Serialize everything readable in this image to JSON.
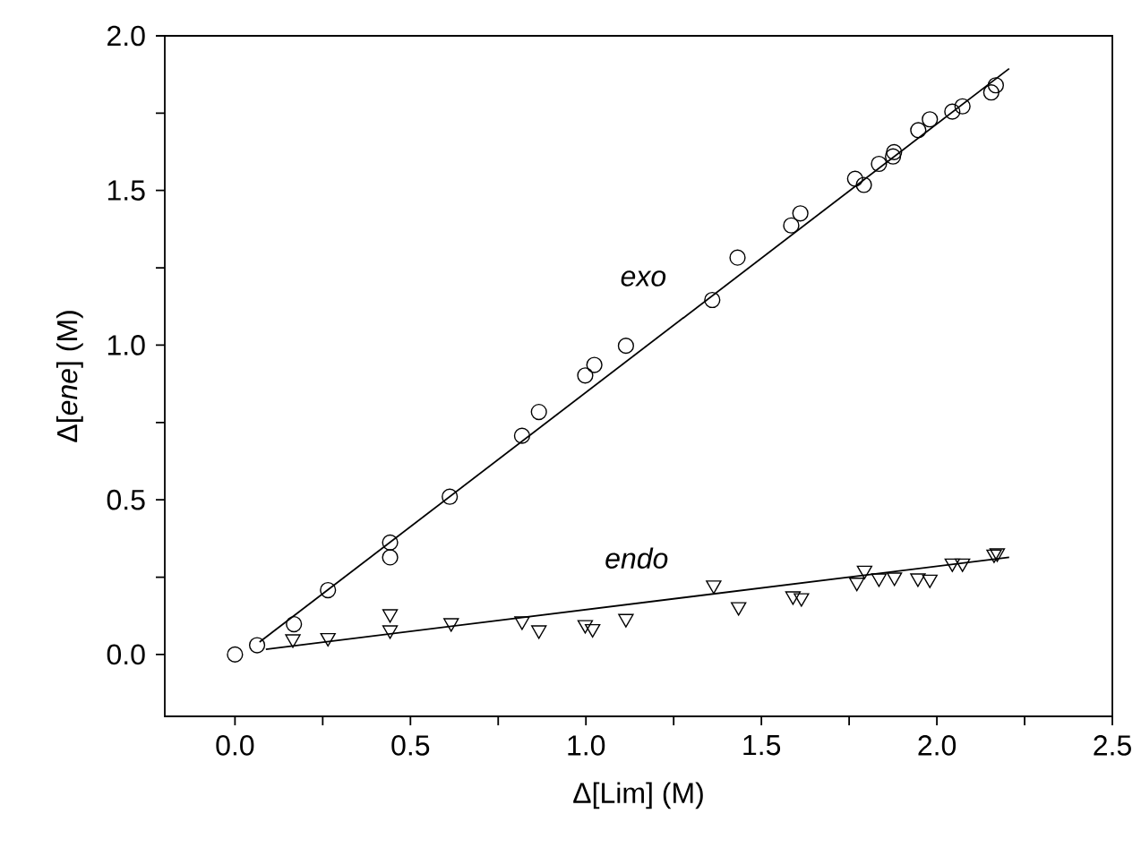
{
  "chart_data": {
    "type": "scatter",
    "xlabel": "Δ[Lim] (M)",
    "ylabel": "Δ[*ene*] (M)",
    "xlim": [
      -0.2,
      2.5
    ],
    "ylim": [
      -0.2,
      2.0
    ],
    "xticks": [
      {
        "value": 0,
        "label": "0.0"
      },
      {
        "value": 0.25,
        "label": null
      },
      {
        "value": 0.5,
        "label": "0.5"
      },
      {
        "value": 0.75,
        "label": null
      },
      {
        "value": 1,
        "label": "1.0"
      },
      {
        "value": 1.25,
        "label": null
      },
      {
        "value": 1.5,
        "label": "1.5"
      },
      {
        "value": 1.75,
        "label": null
      },
      {
        "value": 2,
        "label": "2.0"
      },
      {
        "value": 2.25,
        "label": null
      },
      {
        "value": 2.5,
        "label": "2.5"
      }
    ],
    "yticks": [
      {
        "value": 0,
        "label": "0.0"
      },
      {
        "value": 0.25,
        "label": null
      },
      {
        "value": 0.5,
        "label": "0.5"
      },
      {
        "value": 0.75,
        "label": null
      },
      {
        "value": 1,
        "label": "1.0"
      },
      {
        "value": 1.25,
        "label": null
      },
      {
        "value": 1.5,
        "label": "1.5"
      },
      {
        "value": 1.75,
        "label": null
      },
      {
        "value": 2,
        "label": "2.0"
      }
    ],
    "series": [
      {
        "marker": "circle",
        "color": "#000000",
        "x": [
          0,
          0.063,
          0.168,
          0.265,
          0.442,
          0.442,
          0.612,
          0.818,
          0.866,
          0.998,
          1.024,
          1.114,
          1.36,
          1.432,
          1.585,
          1.611,
          1.767,
          1.792,
          1.835,
          1.875,
          1.878,
          1.947,
          1.98,
          2.044,
          2.073,
          2.155,
          2.168
        ],
        "values": [
          0,
          0.03,
          0.098,
          0.208,
          0.314,
          0.362,
          0.51,
          0.707,
          0.784,
          0.902,
          0.936,
          0.998,
          1.146,
          1.283,
          1.387,
          1.426,
          1.538,
          1.518,
          1.586,
          1.61,
          1.624,
          1.695,
          1.73,
          1.755,
          1.772,
          1.817,
          1.84
        ]
      },
      {
        "marker": "triangle",
        "color": "#000000",
        "x": [
          0.165,
          0.265,
          0.442,
          0.442,
          0.616,
          0.818,
          0.866,
          0.998,
          1.019,
          1.114,
          1.364,
          1.435,
          1.59,
          1.614,
          1.772,
          1.794,
          1.835,
          1.879,
          1.946,
          1.98,
          2.044,
          2.073,
          2.163,
          2.172
        ],
        "values": [
          0.05,
          0.054,
          0.131,
          0.079,
          0.102,
          0.108,
          0.079,
          0.096,
          0.083,
          0.116,
          0.224,
          0.154,
          0.189,
          0.183,
          0.233,
          0.272,
          0.247,
          0.25,
          0.247,
          0.243,
          0.295,
          0.295,
          0.324,
          0.328
        ]
      },
      {
        "name": "*exo*",
        "type": "line",
        "marker": "none",
        "color": "#000000",
        "x": [
          0.07,
          2.206
        ],
        "values": [
          0.04,
          1.894
        ]
      },
      {
        "name": "*endo*",
        "type": "line",
        "marker": "none",
        "color": "#000000",
        "x": [
          0.088,
          2.206
        ],
        "values": [
          0.017,
          0.314
        ]
      }
    ]
  }
}
